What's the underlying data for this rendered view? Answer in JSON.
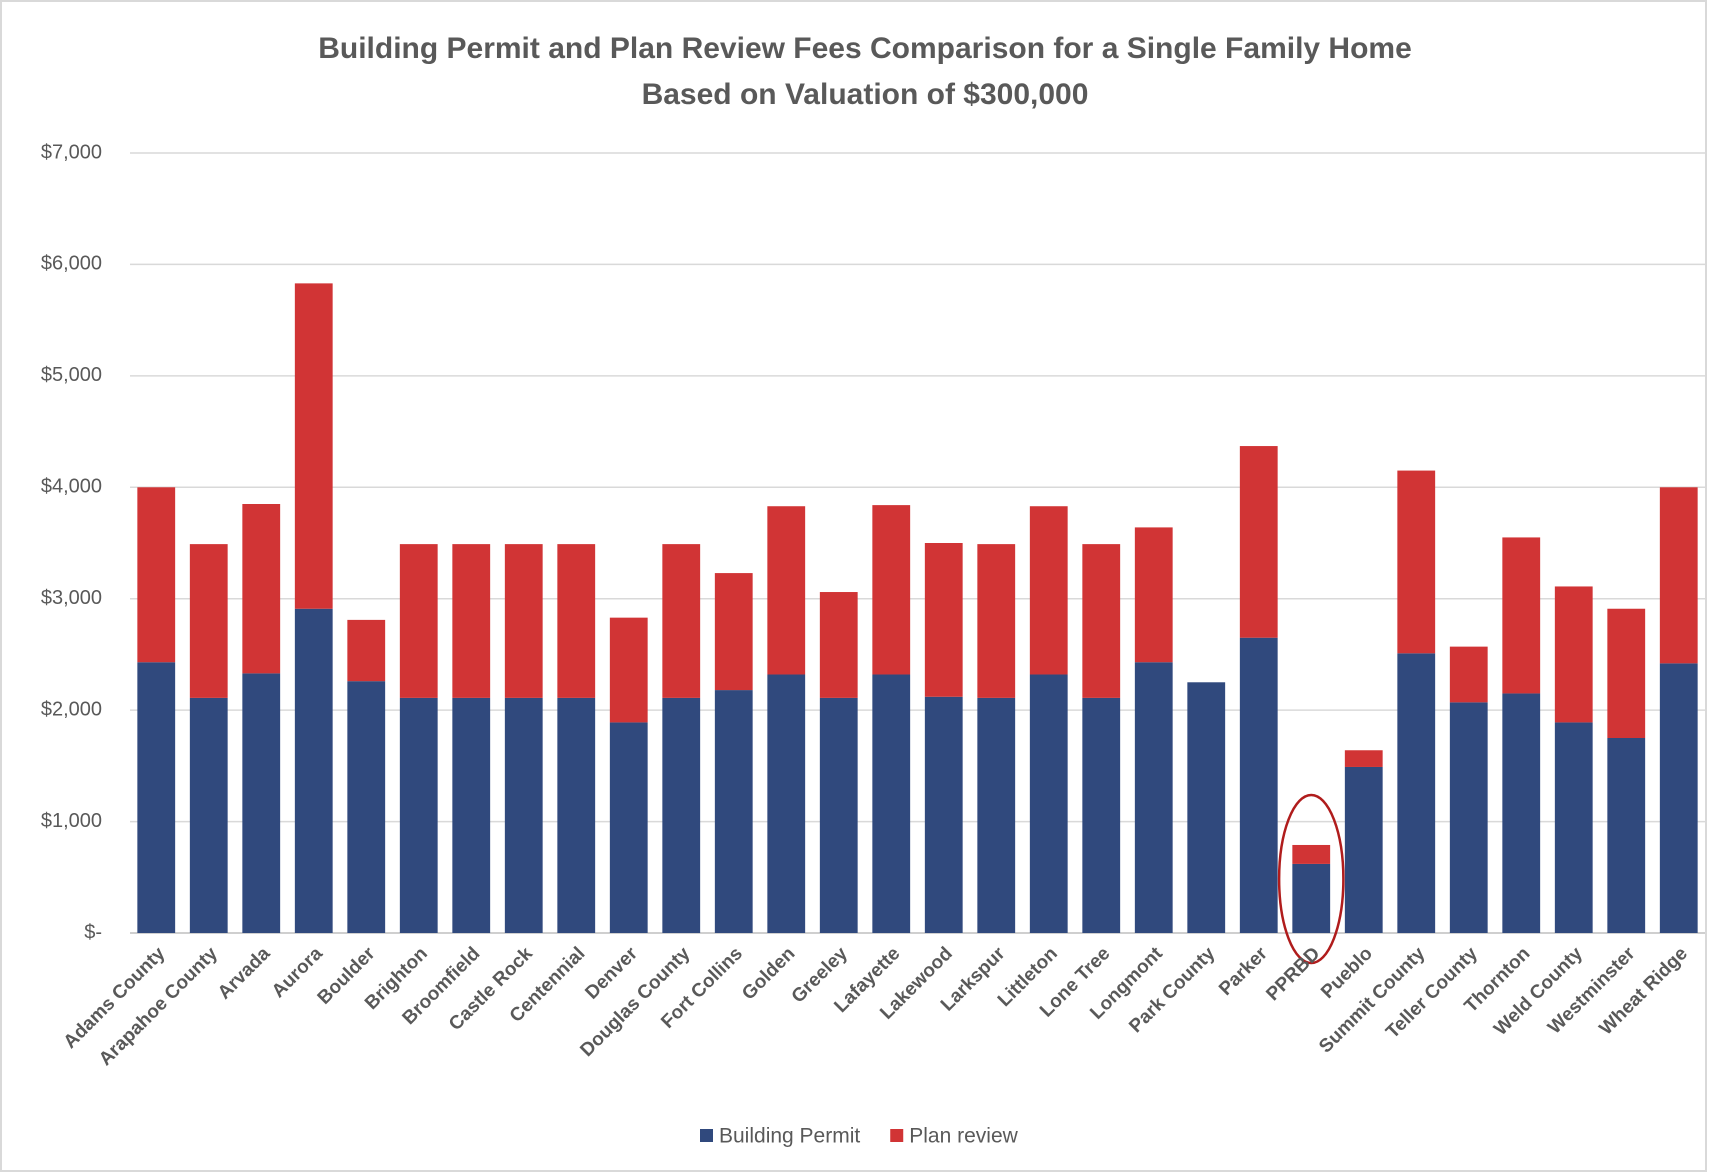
{
  "chart_data": {
    "type": "stacked_bar",
    "title": "Building Permit and Plan Review Fees Comparison for a Single Family Home",
    "subtitle": "Based on Valuation of $300,000",
    "categories": [
      "Adams County",
      "Arapahoe County",
      "Arvada",
      "Aurora",
      "Boulder",
      "Brighton",
      "Broomfield",
      "Castle Rock",
      "Centennial",
      "Denver",
      "Douglas County",
      "Fort Collins",
      "Golden",
      "Greeley",
      "Lafayette",
      "Lakewood",
      "Larkspur",
      "Littleton",
      "Lone Tree",
      "Longmont",
      "Park County",
      "Parker",
      "PPRBD",
      "Pueblo",
      "Summit County",
      "Teller County",
      "Thornton",
      "Weld County",
      "Westminster",
      "Wheat Ridge"
    ],
    "series": [
      {
        "name": "Building Permit",
        "color": "#30497d",
        "values": [
          2430,
          2110,
          2330,
          2910,
          2260,
          2110,
          2110,
          2110,
          2110,
          1890,
          2110,
          2180,
          2320,
          2110,
          2320,
          2120,
          2110,
          2320,
          2110,
          2430,
          2250,
          2650,
          620,
          1490,
          2510,
          2070,
          2150,
          1890,
          1750,
          2420
        ]
      },
      {
        "name": "Plan review",
        "color": "#d13435",
        "values": [
          1570,
          1380,
          1520,
          2920,
          550,
          1380,
          1380,
          1380,
          1380,
          940,
          1380,
          1050,
          1510,
          950,
          1520,
          1380,
          1380,
          1510,
          1380,
          1210,
          0,
          1720,
          170,
          150,
          1640,
          500,
          1400,
          1220,
          1160,
          1580
        ]
      }
    ],
    "ylim": [
      0,
      7000
    ],
    "yticks": [
      {
        "value": 0,
        "label": "$-"
      },
      {
        "value": 1000,
        "label": "$1,000"
      },
      {
        "value": 2000,
        "label": "$2,000"
      },
      {
        "value": 3000,
        "label": "$3,000"
      },
      {
        "value": 4000,
        "label": "$4,000"
      },
      {
        "value": 5000,
        "label": "$5,000"
      },
      {
        "value": 6000,
        "label": "$6,000"
      },
      {
        "value": 7000,
        "label": "$7,000"
      }
    ],
    "grid": true,
    "legend": "bottom"
  }
}
